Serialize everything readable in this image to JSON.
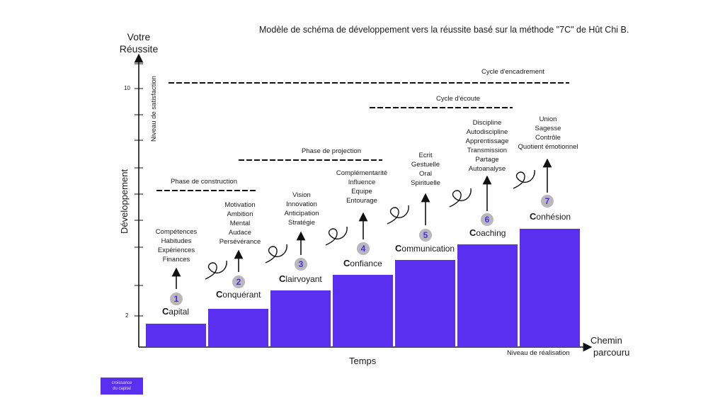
{
  "title": "Modèle de schéma de développement vers la réussite basé sur la méthode \"7C\" de Hût Chi B.",
  "y_axis": {
    "title_line1": "Votre",
    "title_line2": "Réussite",
    "label": "Développement",
    "satisfaction_label": "Niveau de satisfaction",
    "tick_top": "10",
    "tick_bottom": "2"
  },
  "x_axis": {
    "label": "Temps",
    "end_label_line1": "Chemin",
    "end_label_line2": "parcouru",
    "realisation_label": "Niveau de réalisation"
  },
  "phases": {
    "construction": "Phase de construction",
    "projection": "Phase de projection",
    "ecoute": "Cycle d'écoute",
    "encadrement": "Cycle d'encadrement"
  },
  "stages": [
    {
      "number": "1",
      "initial": "C",
      "rest": "apital",
      "items": [
        "Compétences",
        "Habitudes",
        "Expériences",
        "Finances"
      ],
      "level": 1
    },
    {
      "number": "2",
      "initial": "C",
      "rest": "onquérant",
      "items": [
        "Motivation",
        "Ambition",
        "Mental",
        "Audace",
        "Persévérance"
      ],
      "level": 2
    },
    {
      "number": "3",
      "initial": "C",
      "rest": "lairvoyant",
      "items": [
        "Vision",
        "Innovation",
        "Anticipation",
        "Stratégie"
      ],
      "level": 3
    },
    {
      "number": "4",
      "initial": "C",
      "rest": "onfiance",
      "items": [
        "Complémentarité",
        "Influence",
        "Equipe",
        "Entourage"
      ],
      "level": 4
    },
    {
      "number": "5",
      "initial": "C",
      "rest": "ommunication",
      "items": [
        "Ecrit",
        "Gestuelle",
        "Oral",
        "Spirituelle"
      ],
      "level": 5
    },
    {
      "number": "6",
      "initial": "C",
      "rest": "oaching",
      "items": [
        "Discipline",
        "Autodiscipline",
        "Apprentissage",
        "Transmission",
        "Partage",
        "Autoanalyse"
      ],
      "level": 6
    },
    {
      "number": "7",
      "initial": "C",
      "rest": "onhésion",
      "items": [
        "Union",
        "Sagesse",
        "Contrôle",
        "Quotient émotionnel"
      ],
      "level": 7
    }
  ],
  "legend": {
    "line1": "croissance",
    "line2": "du capital"
  },
  "colors": {
    "bar": "#5a2ff0",
    "badge": "#b7b7bd",
    "badge_text": "#4f2bd9",
    "axis": "#111111"
  }
}
